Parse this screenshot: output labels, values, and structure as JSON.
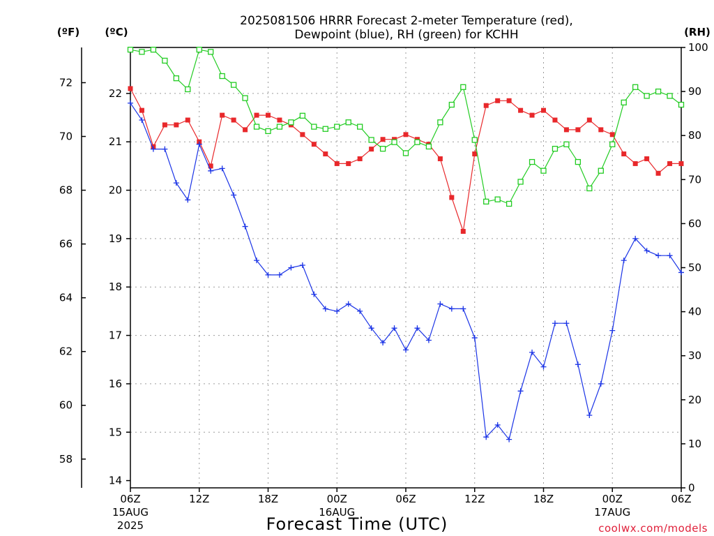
{
  "chart_data": {
    "type": "line",
    "title_line1": "2025081506 HRRR Forecast 2-meter Temperature (red),",
    "title_line2": "Dewpoint (blue), RH (green) for KCHH",
    "xlabel": "Forecast Time (UTC)",
    "credit": "coolwx.com/models",
    "units": {
      "fahrenheit": "(ºF)",
      "celsius": "(ºC)",
      "rh": "(RH)"
    },
    "x_ticks": [
      "06Z",
      "12Z",
      "18Z",
      "00Z",
      "06Z",
      "12Z",
      "18Z",
      "00Z",
      "06Z"
    ],
    "date_labels": [
      {
        "hour_index": 0,
        "line1": "15AUG",
        "line2": "2025"
      },
      {
        "hour_index": 18,
        "line1": "16AUG",
        "line2": ""
      },
      {
        "hour_index": 42,
        "line1": "17AUG",
        "line2": ""
      }
    ],
    "x_range_hours": [
      0,
      48
    ],
    "celsius_axis": {
      "ylim": [
        13.85,
        22.95
      ],
      "ticks": [
        14,
        15,
        16,
        17,
        18,
        19,
        20,
        21,
        22
      ]
    },
    "fahrenheit_axis": {
      "ticks": [
        58,
        60,
        62,
        64,
        66,
        68,
        70,
        72
      ]
    },
    "rh_axis": {
      "ylim": [
        0,
        100
      ],
      "ticks": [
        0,
        10,
        20,
        30,
        40,
        50,
        60,
        70,
        80,
        90,
        100
      ]
    },
    "grid": true,
    "colors": {
      "temperature": "#e8282b",
      "dewpoint": "#1a33e6",
      "rh": "#22cc22",
      "credit": "#e0203a"
    },
    "series": [
      {
        "name": "Temperature",
        "axis": "celsius",
        "marker": "filled-square",
        "values": [
          22.1,
          21.65,
          20.9,
          21.35,
          21.35,
          21.45,
          21.0,
          20.5,
          21.55,
          21.45,
          21.25,
          21.55,
          21.55,
          21.45,
          21.35,
          21.15,
          20.95,
          20.75,
          20.55,
          20.55,
          20.65,
          20.85,
          21.05,
          21.05,
          21.15,
          21.05,
          20.95,
          20.65,
          19.85,
          19.15,
          20.75,
          21.75,
          21.85,
          21.85,
          21.65,
          21.55,
          21.65,
          21.45,
          21.25,
          21.25,
          21.45,
          21.25,
          21.15,
          20.75,
          20.55,
          20.65,
          20.35,
          20.55,
          20.55
        ]
      },
      {
        "name": "Dewpoint",
        "axis": "celsius",
        "marker": "plus",
        "values": [
          21.8,
          21.45,
          20.85,
          20.85,
          20.15,
          19.8,
          20.95,
          20.4,
          20.45,
          19.9,
          19.25,
          18.55,
          18.25,
          18.25,
          18.4,
          18.45,
          17.85,
          17.55,
          17.5,
          17.65,
          17.5,
          17.15,
          16.85,
          17.15,
          16.7,
          17.15,
          16.9,
          17.65,
          17.55,
          17.55,
          16.95,
          14.9,
          15.15,
          14.85,
          15.85,
          16.65,
          16.35,
          17.25,
          17.25,
          16.4,
          15.35,
          16.0,
          17.1,
          18.55,
          19.0,
          18.75,
          18.65,
          18.65,
          18.3
        ]
      },
      {
        "name": "RH",
        "axis": "rh",
        "marker": "open-square",
        "values": [
          99.5,
          99.0,
          99.5,
          97.0,
          93.0,
          90.5,
          99.5,
          99.0,
          93.5,
          91.5,
          88.5,
          82.0,
          81.0,
          82.0,
          83.0,
          84.5,
          82.0,
          81.5,
          82.0,
          83.0,
          82.0,
          79.0,
          77.0,
          78.5,
          76.0,
          78.5,
          77.5,
          83.0,
          87.0,
          91.0,
          79.0,
          65.0,
          65.5,
          64.5,
          69.5,
          74.0,
          72.0,
          77.0,
          78.0,
          74.0,
          68.0,
          72.0,
          78.0,
          87.5,
          91.0,
          89.0,
          90.0,
          89.0,
          87.0
        ]
      }
    ]
  }
}
